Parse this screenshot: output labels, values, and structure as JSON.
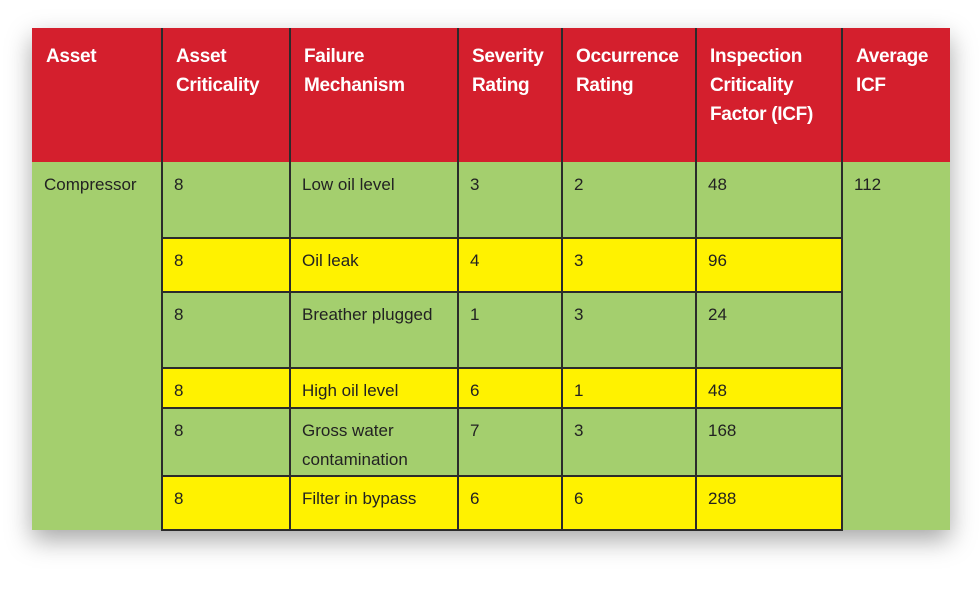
{
  "table": {
    "headers": [
      "Asset",
      "Asset Criticality",
      "Failure Mechanism",
      "Severity Rating",
      "Occurrence Rating",
      "Inspection Criticality Factor (ICF)",
      "Average ICF"
    ],
    "asset": "Compressor",
    "average_icf": 112,
    "rows": [
      [
        8,
        "Low oil level",
        3,
        2,
        48
      ],
      [
        8,
        "Oil leak",
        4,
        3,
        96
      ],
      [
        8,
        "Breather plugged",
        1,
        3,
        24
      ],
      [
        8,
        "High oil level",
        6,
        1,
        48
      ],
      [
        8,
        "Gross water contamination",
        7,
        3,
        168
      ],
      [
        8,
        "Filter in bypass",
        6,
        6,
        288
      ]
    ]
  }
}
